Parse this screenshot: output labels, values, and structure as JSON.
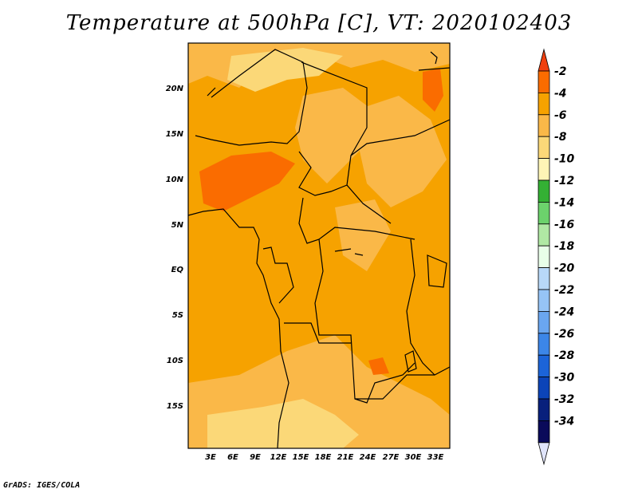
{
  "title": "Temperature at 500hPa [C], VT: 2020102403",
  "credit": "GrADS: IGES/COLA",
  "map": {
    "lon_labels": [
      "3E",
      "6E",
      "9E",
      "12E",
      "15E",
      "18E",
      "21E",
      "24E",
      "27E",
      "30E",
      "33E"
    ],
    "lat_labels": [
      "20N",
      "15N",
      "10N",
      "5N",
      "EQ",
      "5S",
      "10S",
      "15S"
    ],
    "colors": {
      "ocean_base": "#f6a200",
      "warm_patch": "#fa6c00",
      "mid_band": "#fab848",
      "cool_band": "#fbd878",
      "border": "#000000"
    }
  },
  "colorbar": {
    "labels": [
      "-2",
      "-4",
      "-6",
      "-8",
      "-10",
      "-12",
      "-14",
      "-16",
      "-18",
      "-20",
      "-22",
      "-24",
      "-26",
      "-28",
      "-30",
      "-32",
      "-34"
    ],
    "colors": [
      "#f04010",
      "#fa6c00",
      "#f6a200",
      "#fab848",
      "#fbd878",
      "#fef5b6",
      "#34b034",
      "#6cd26c",
      "#b0e8a4",
      "#e8fee8",
      "#b8d8f8",
      "#96c4f6",
      "#6aa6f0",
      "#3c86e8",
      "#1c64d8",
      "#0c44b8",
      "#08207c",
      "#0a0a5a",
      "#e0e4fa"
    ]
  }
}
